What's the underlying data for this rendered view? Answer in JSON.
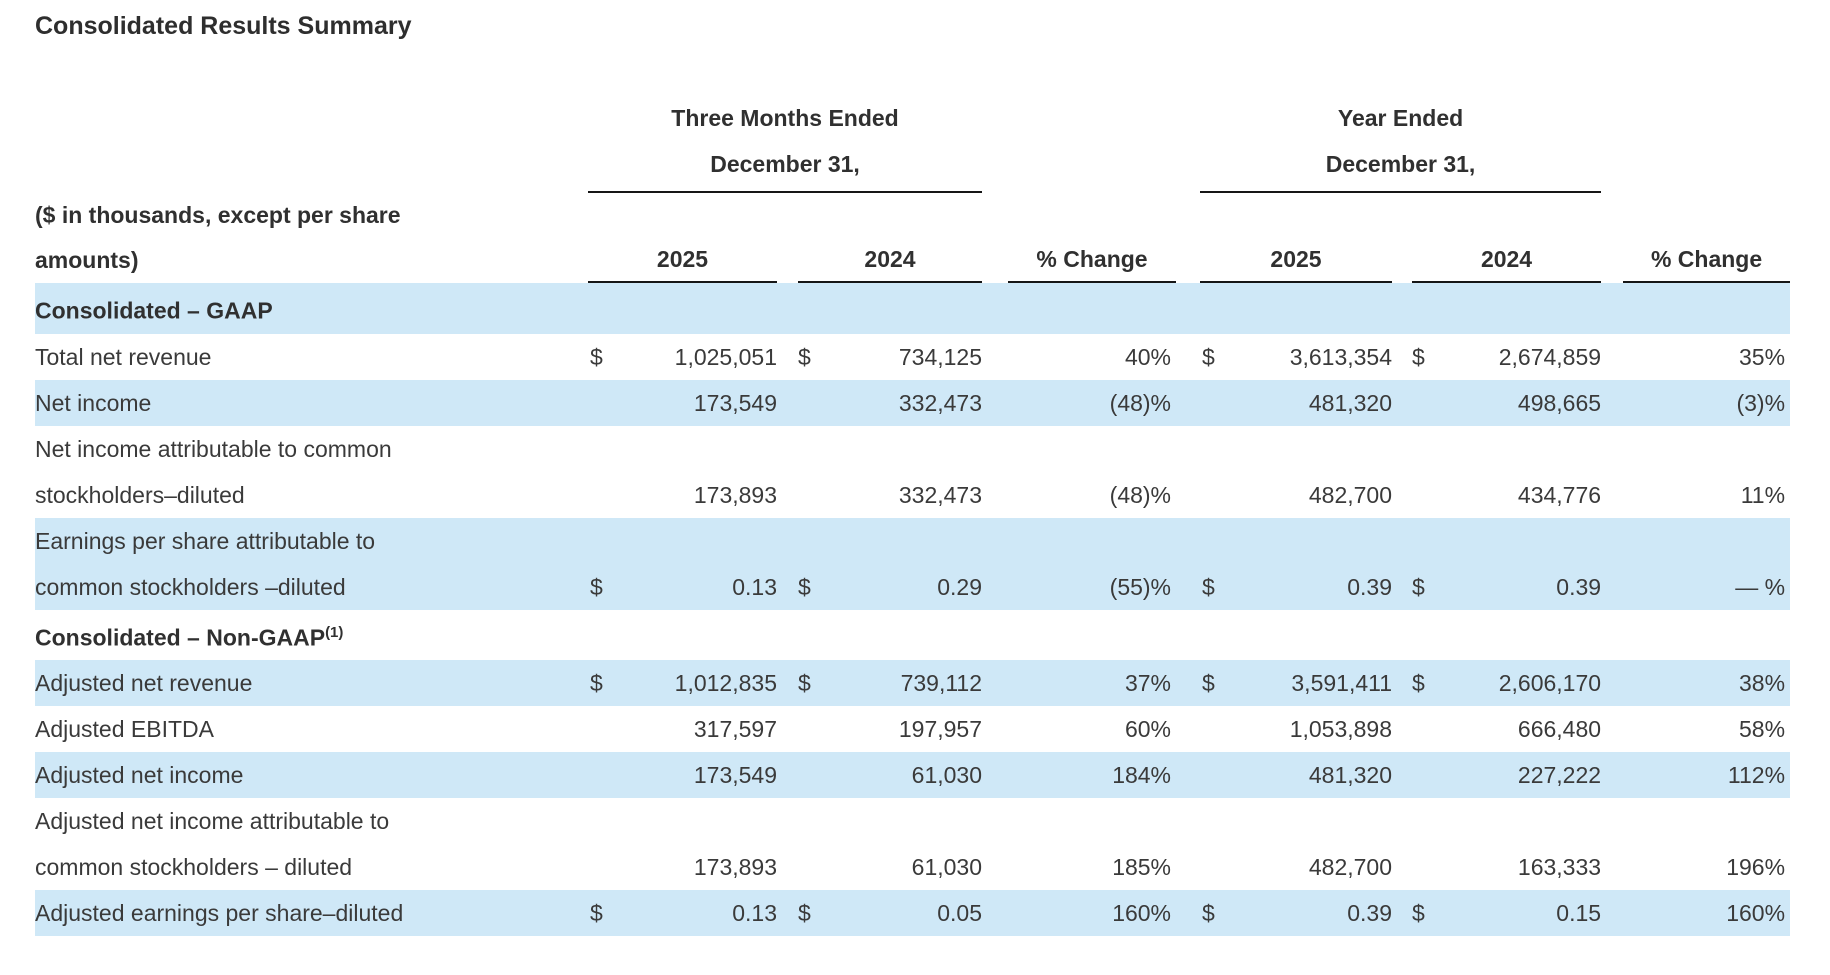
{
  "title": "Consolidated Results Summary",
  "table": {
    "row_label_header": "($ in thousands, except per share\namounts)",
    "groups": [
      {
        "title": "Three Months Ended\nDecember 31,"
      },
      {
        "title": "Year Ended\nDecember 31,"
      }
    ],
    "col_headers": {
      "tm_2025": "2025",
      "tm_2024": "2024",
      "tm_pct": "% Change",
      "ye_2025": "2025",
      "ye_2024": "2024",
      "ye_pct": "% Change"
    },
    "rows": [
      {
        "type": "section",
        "label": "Consolidated – GAAP",
        "sup": ""
      },
      {
        "type": "data",
        "label": "Total net revenue",
        "d1": "$",
        "v1": "1,025,051",
        "d2": "$",
        "v2": "734,125",
        "p1": "40%",
        "d3": "$",
        "v3": "3,613,354",
        "d4": "$",
        "v4": "2,674,859",
        "p2": "35%"
      },
      {
        "type": "data",
        "label": "Net income",
        "v1": "173,549",
        "v2": "332,473",
        "p1": "(48)%",
        "v3": "481,320",
        "v4": "498,665",
        "p2": "(3)%"
      },
      {
        "type": "data",
        "label": "Net income attributable to common\nstockholders–diluted",
        "v1": "173,893",
        "v2": "332,473",
        "p1": "(48)%",
        "v3": "482,700",
        "v4": "434,776",
        "p2": "11%"
      },
      {
        "type": "data",
        "label": "Earnings per share attributable to\ncommon stockholders –diluted",
        "d1": "$",
        "v1": "0.13",
        "d2": "$",
        "v2": "0.29",
        "p1": "(55)%",
        "d3": "$",
        "v3": "0.39",
        "d4": "$",
        "v4": "0.39",
        "p2": "— %"
      },
      {
        "type": "section",
        "label": "Consolidated – Non-GAAP",
        "sup": "(1)"
      },
      {
        "type": "data",
        "label": "Adjusted net revenue",
        "d1": "$",
        "v1": "1,012,835",
        "d2": "$",
        "v2": "739,112",
        "p1": "37%",
        "d3": "$",
        "v3": "3,591,411",
        "d4": "$",
        "v4": "2,606,170",
        "p2": "38%"
      },
      {
        "type": "data",
        "label": "Adjusted EBITDA",
        "v1": "317,597",
        "v2": "197,957",
        "p1": "60%",
        "v3": "1,053,898",
        "v4": "666,480",
        "p2": "58%"
      },
      {
        "type": "data",
        "label": "Adjusted net income",
        "v1": "173,549",
        "v2": "61,030",
        "p1": "184%",
        "v3": "481,320",
        "v4": "227,222",
        "p2": "112%"
      },
      {
        "type": "data",
        "label": "Adjusted net income attributable to\ncommon stockholders – diluted",
        "v1": "173,893",
        "v2": "61,030",
        "p1": "185%",
        "v3": "482,700",
        "v4": "163,333",
        "p2": "196%"
      },
      {
        "type": "data",
        "label": "Adjusted earnings per share–diluted",
        "d1": "$",
        "v1": "0.13",
        "d2": "$",
        "v2": "0.05",
        "p1": "160%",
        "d3": "$",
        "v3": "0.39",
        "d4": "$",
        "v4": "0.15",
        "p2": "160%"
      }
    ]
  },
  "colors": {
    "row_shade": "#cfe8f7",
    "text": "#3a3a3a",
    "rule": "#161616"
  }
}
